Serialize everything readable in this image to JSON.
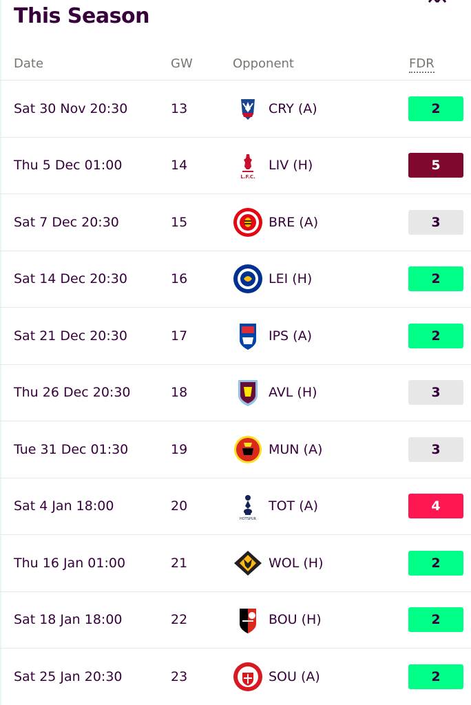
{
  "section": {
    "title": "This Season"
  },
  "header": {
    "date": "Date",
    "gw": "GW",
    "opponent": "Opponent",
    "fdr": "FDR"
  },
  "fdr_colors": {
    "2": {
      "bg": "#00ff87",
      "fg": "#37003c"
    },
    "3": {
      "bg": "#e7e7e7",
      "fg": "#37003c"
    },
    "4": {
      "bg": "#ff1751",
      "fg": "#ffffff"
    },
    "5": {
      "bg": "#80072d",
      "fg": "#ffffff"
    }
  },
  "fixtures": [
    {
      "date": "Sat 30 Nov 20:30",
      "gw": "13",
      "opponent": "CRY (A)",
      "fdr": "2",
      "crest": "crystal-palace-crest-icon"
    },
    {
      "date": "Thu 5 Dec 01:00",
      "gw": "14",
      "opponent": "LIV (H)",
      "fdr": "5",
      "crest": "liverpool-crest-icon"
    },
    {
      "date": "Sat 7 Dec 20:30",
      "gw": "15",
      "opponent": "BRE (A)",
      "fdr": "3",
      "crest": "brentford-crest-icon"
    },
    {
      "date": "Sat 14 Dec 20:30",
      "gw": "16",
      "opponent": "LEI (H)",
      "fdr": "2",
      "crest": "leicester-crest-icon"
    },
    {
      "date": "Sat 21 Dec 20:30",
      "gw": "17",
      "opponent": "IPS (A)",
      "fdr": "2",
      "crest": "ipswich-crest-icon"
    },
    {
      "date": "Thu 26 Dec 20:30",
      "gw": "18",
      "opponent": "AVL (H)",
      "fdr": "3",
      "crest": "aston-villa-crest-icon"
    },
    {
      "date": "Tue 31 Dec 01:30",
      "gw": "19",
      "opponent": "MUN (A)",
      "fdr": "3",
      "crest": "man-utd-crest-icon"
    },
    {
      "date": "Sat 4 Jan 18:00",
      "gw": "20",
      "opponent": "TOT (A)",
      "fdr": "4",
      "crest": "tottenham-crest-icon"
    },
    {
      "date": "Thu 16 Jan 01:00",
      "gw": "21",
      "opponent": "WOL (H)",
      "fdr": "2",
      "crest": "wolves-crest-icon"
    },
    {
      "date": "Sat 18 Jan 18:00",
      "gw": "22",
      "opponent": "BOU (H)",
      "fdr": "2",
      "crest": "bournemouth-crest-icon"
    },
    {
      "date": "Sat 25 Jan 20:30",
      "gw": "23",
      "opponent": "SOU (A)",
      "fdr": "2",
      "crest": "southampton-crest-icon"
    }
  ]
}
